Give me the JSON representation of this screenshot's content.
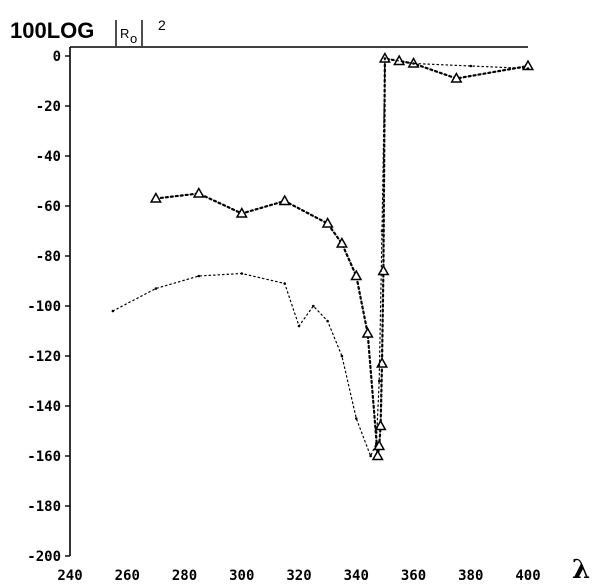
{
  "chart_data": {
    "type": "line",
    "title": {
      "prefix": "100",
      "main": "LOG",
      "abs_symbol": "R",
      "subscript": "o",
      "superscript": "2"
    },
    "xlabel": "λ",
    "ylabel": "",
    "xlim": [
      240,
      400
    ],
    "ylim": [
      -200,
      0
    ],
    "xticks": [
      "240",
      "260",
      "280",
      "300",
      "320",
      "340",
      "360",
      "380",
      "400"
    ],
    "yticks": [
      "0",
      "-20",
      "-40",
      "-60",
      "-80",
      "-100",
      "-120",
      "-140",
      "-160",
      "-180",
      "-200"
    ],
    "grid": false,
    "legend": "none",
    "series": [
      {
        "style": "dotted-triangles",
        "x": [
          270,
          285,
          300,
          315,
          330,
          335,
          340,
          344,
          347.5,
          348,
          348.5,
          349,
          349.5,
          350,
          355,
          360,
          375,
          400
        ],
        "y": [
          -57,
          -55,
          -63,
          -58,
          -67,
          -75,
          -88,
          -111,
          -160,
          -156,
          -148,
          -123,
          -86,
          -1,
          -2,
          -3,
          -9,
          -4
        ]
      },
      {
        "style": "dotted-thin",
        "x": [
          255,
          270,
          285,
          300,
          315,
          320,
          325,
          330,
          335,
          340,
          345,
          347,
          348,
          349,
          350,
          360,
          380,
          400
        ],
        "y": [
          -102,
          -93,
          -88,
          -87,
          -91,
          -108,
          -100,
          -106,
          -120,
          -145,
          -160,
          -155,
          -130,
          -70,
          -1,
          -3,
          -4,
          -5
        ]
      }
    ]
  }
}
